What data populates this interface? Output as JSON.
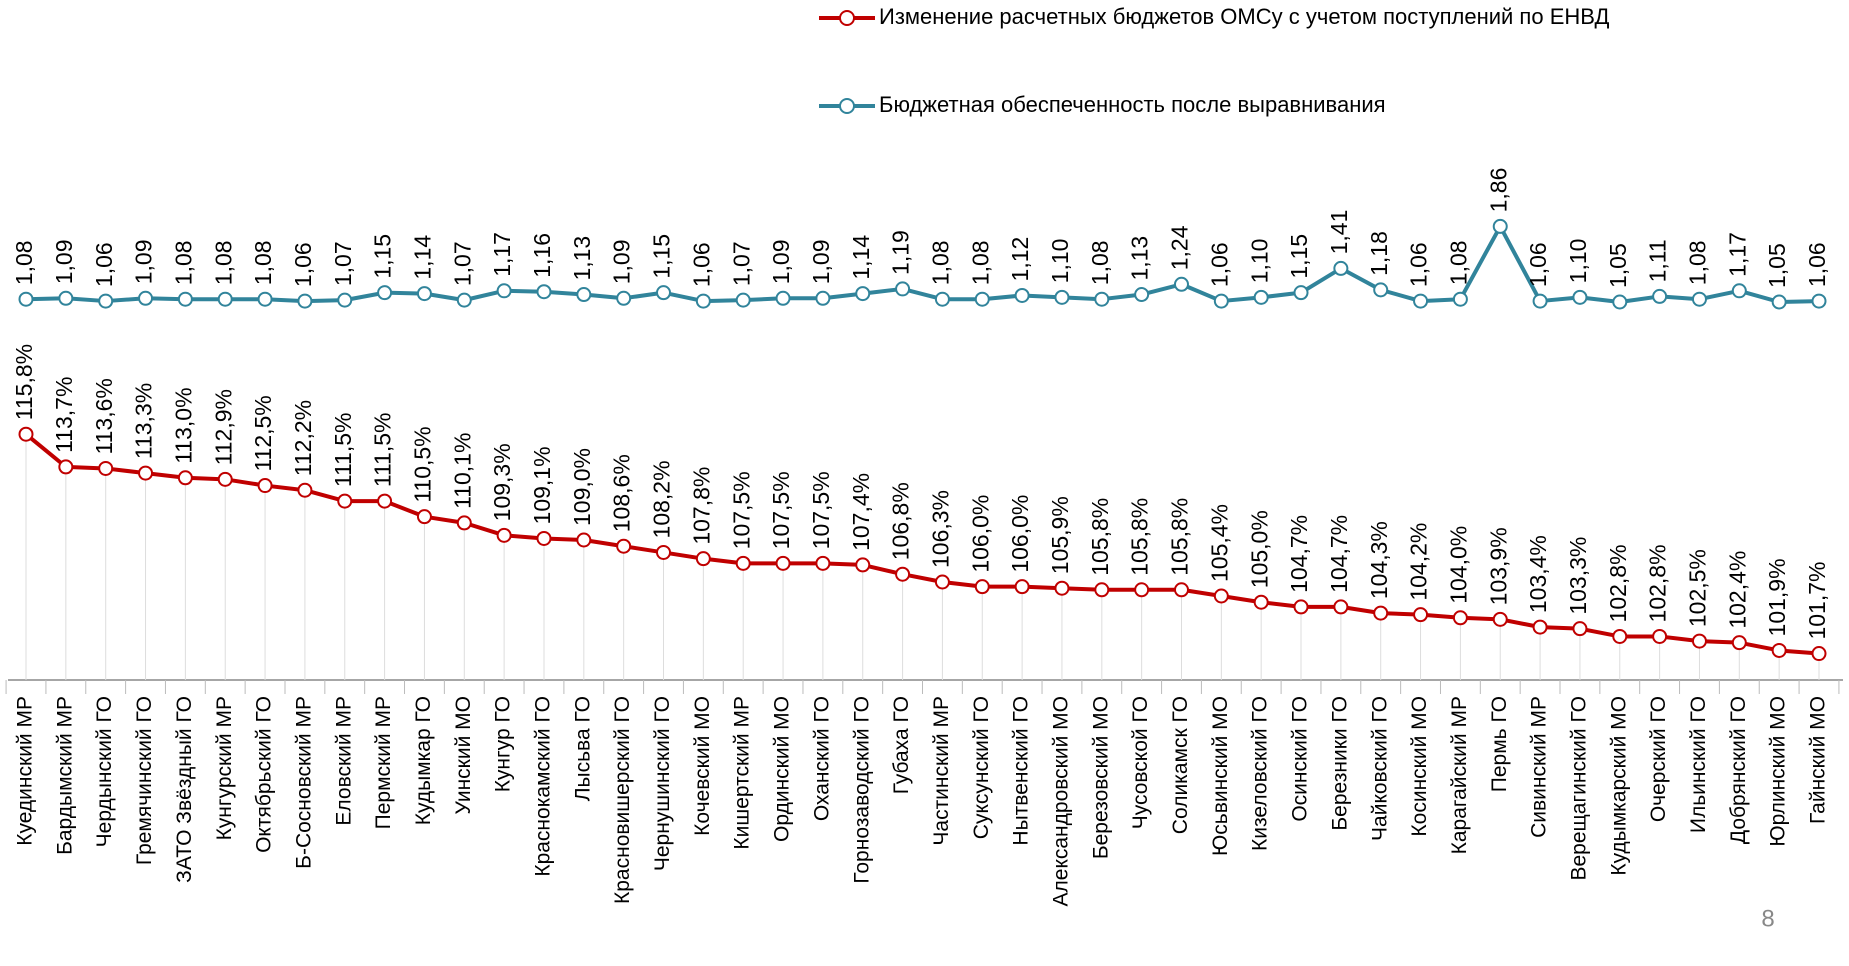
{
  "chart_data": {
    "type": "line",
    "categories": [
      "Куединский МР",
      "Бардымский МР",
      "Чердынский ГО",
      "Гремячинский ГО",
      "ЗАТО Звёздный ГО",
      "Кунгурский МР",
      "Октябрьский ГО",
      "Б-Сосновский МР",
      "Еловский МР",
      "Пермский МР",
      "Кудымкар ГО",
      "Уинский МО",
      "Кунгур ГО",
      "Краснокамский ГО",
      "Лысьва ГО",
      "Красновишерский ГО",
      "Чернушинский ГО",
      "Кочевский МО",
      "Кишертский МР",
      "Ординский МО",
      "Оханский ГО",
      "Горнозаводский ГО",
      "Губаха ГО",
      "Частинский МР",
      "Суксунский ГО",
      "Нытвенский ГО",
      "Александровский МО",
      "Березовский МО",
      "Чусовской ГО",
      "Соликамск ГО",
      "Юсьвинский МО",
      "Кизеловский ГО",
      "Осинский ГО",
      "Березники ГО",
      "Чайковский ГО",
      "Косинский МО",
      "Карагайский МР",
      "Пермь ГО",
      "Сивинский МР",
      "Верещагинский ГО",
      "Кудымкарский МО",
      "Очерский ГО",
      "Ильинский ГО",
      "Добрянский ГО",
      "Юрлинский МО",
      "Гайнский МО"
    ],
    "series": [
      {
        "name": "Изменение расчетных бюджетов ОМСу с учетом поступлений по ЕНВД",
        "color": "#c00000",
        "values": [
          115.8,
          113.7,
          113.6,
          113.3,
          113.0,
          112.9,
          112.5,
          112.2,
          111.5,
          111.5,
          110.5,
          110.1,
          109.3,
          109.1,
          109.0,
          108.6,
          108.2,
          107.8,
          107.5,
          107.5,
          107.5,
          107.4,
          106.8,
          106.3,
          106.0,
          106.0,
          105.9,
          105.8,
          105.8,
          105.8,
          105.4,
          105.0,
          104.7,
          104.7,
          104.3,
          104.2,
          104.0,
          103.9,
          103.4,
          103.3,
          102.8,
          102.8,
          102.5,
          102.4,
          101.9,
          101.7
        ],
        "value_labels": [
          "115,8%",
          "113,7%",
          "113,6%",
          "113,3%",
          "113,0%",
          "112,9%",
          "112,5%",
          "112,2%",
          "111,5%",
          "111,5%",
          "110,5%",
          "110,1%",
          "109,3%",
          "109,1%",
          "109,0%",
          "108,6%",
          "108,2%",
          "107,8%",
          "107,5%",
          "107,5%",
          "107,5%",
          "107,4%",
          "106,8%",
          "106,3%",
          "106,0%",
          "106,0%",
          "105,9%",
          "105,8%",
          "105,8%",
          "105,8%",
          "105,4%",
          "105,0%",
          "104,7%",
          "104,7%",
          "104,3%",
          "104,2%",
          "104,0%",
          "103,9%",
          "103,4%",
          "103,3%",
          "102,8%",
          "102,8%",
          "102,5%",
          "102,4%",
          "101,9%",
          "101,7%"
        ]
      },
      {
        "name": "Бюджетная обеспеченность после выравнивания",
        "color": "#31849b",
        "axis": "y2",
        "values": [
          1.08,
          1.09,
          1.06,
          1.09,
          1.08,
          1.08,
          1.08,
          1.06,
          1.07,
          1.15,
          1.14,
          1.07,
          1.17,
          1.16,
          1.13,
          1.09,
          1.15,
          1.06,
          1.07,
          1.09,
          1.09,
          1.14,
          1.19,
          1.08,
          1.08,
          1.12,
          1.1,
          1.08,
          1.13,
          1.24,
          1.06,
          1.1,
          1.15,
          1.41,
          1.18,
          1.06,
          1.08,
          1.86,
          1.06,
          1.1,
          1.05,
          1.11,
          1.08,
          1.17,
          1.05,
          1.06
        ],
        "value_labels": [
          "1,08",
          "1,09",
          "1,06",
          "1,09",
          "1,08",
          "1,08",
          "1,08",
          "1,06",
          "1,07",
          "1,15",
          "1,14",
          "1,07",
          "1,17",
          "1,16",
          "1,13",
          "1,09",
          "1,15",
          "1,06",
          "1,07",
          "1,09",
          "1,09",
          "1,14",
          "1,19",
          "1,08",
          "1,08",
          "1,12",
          "1,10",
          "1,08",
          "1,13",
          "1,24",
          "1,06",
          "1,10",
          "1,15",
          "1,41",
          "1,18",
          "1,06",
          "1,08",
          "1,86",
          "1,06",
          "1,10",
          "1,05",
          "1,11",
          "1,08",
          "1,17",
          "1,05",
          "1,06"
        ]
      }
    ],
    "ylim": [
      100,
      136
    ],
    "y2lim": [
      -3,
      3
    ]
  },
  "page_number": "8"
}
